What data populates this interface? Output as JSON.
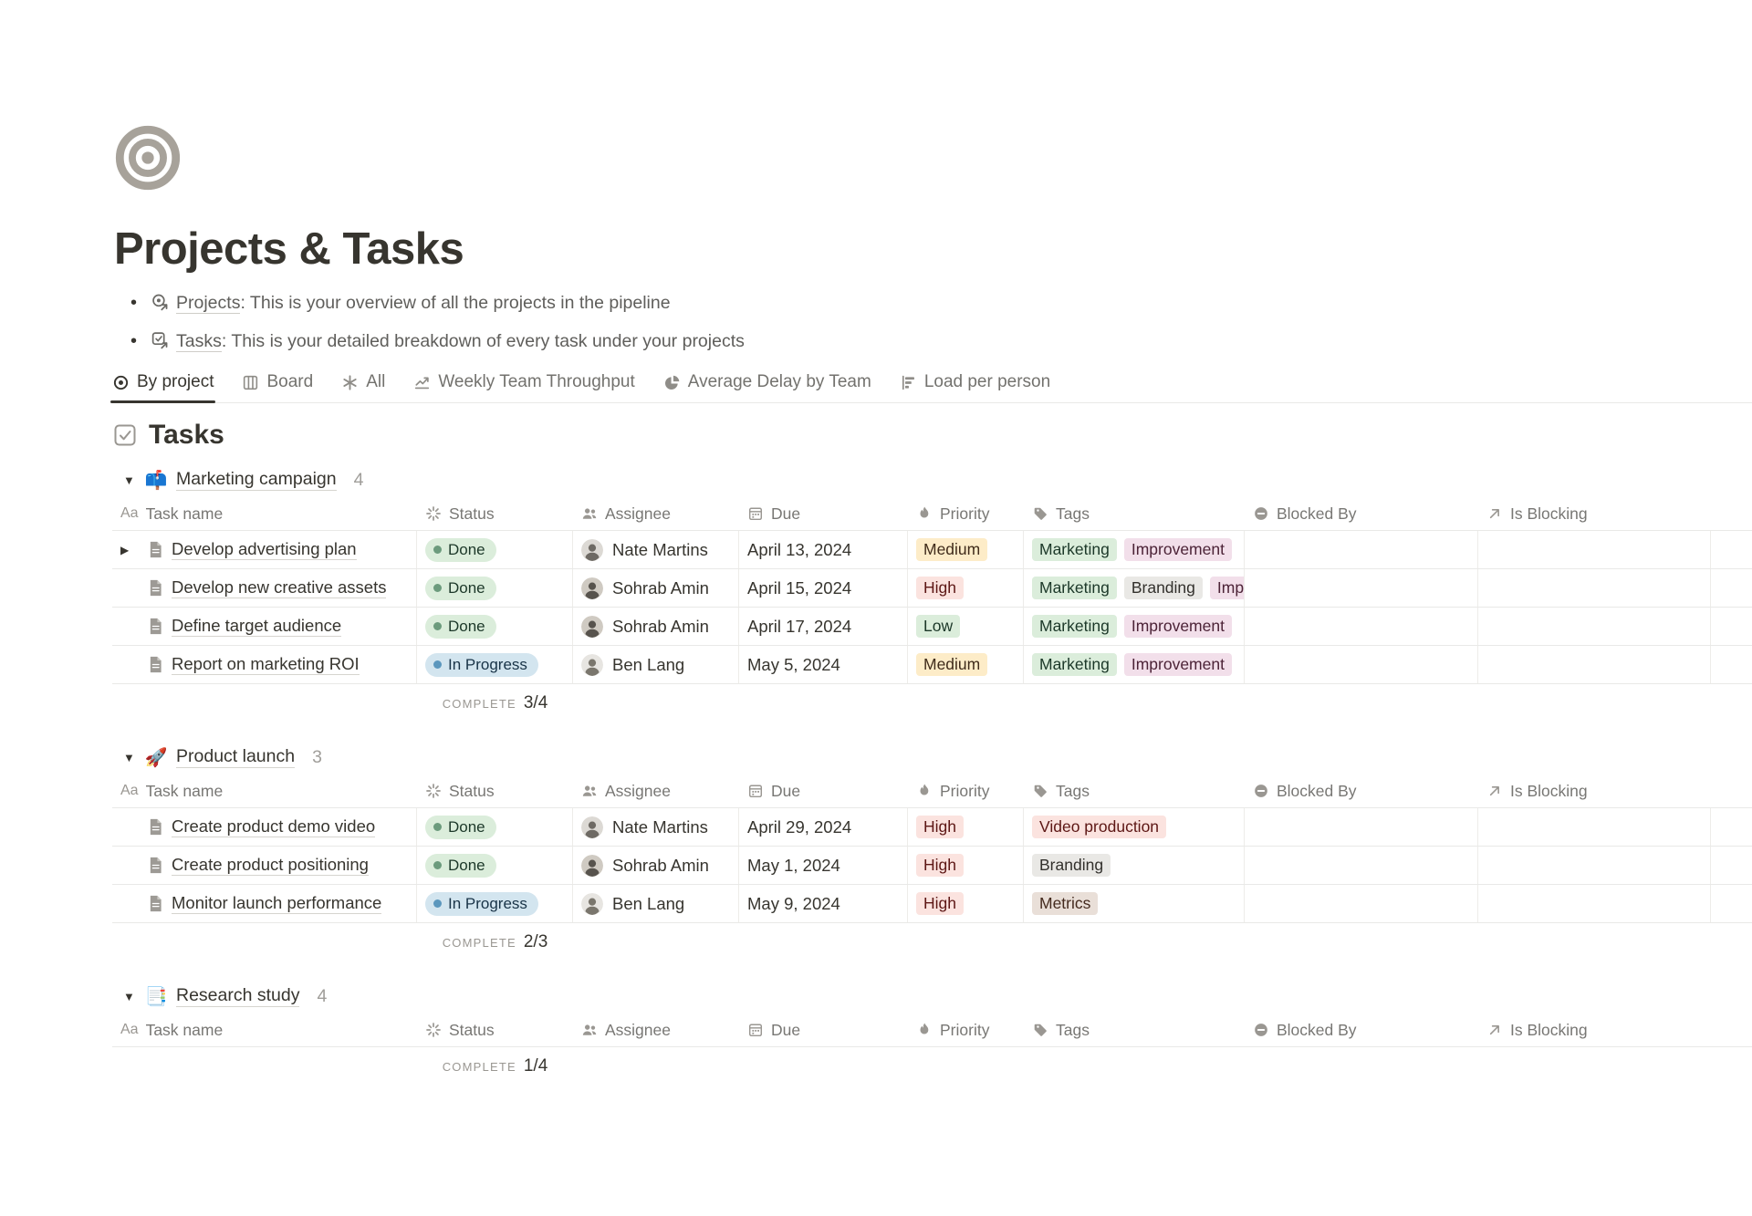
{
  "page": {
    "title": "Projects & Tasks",
    "icon": "target-bullseye-icon"
  },
  "bullets": [
    {
      "icon": "projects-database-icon",
      "link": "Projects",
      "text": ": This is your overview of all the projects in the pipeline"
    },
    {
      "icon": "tasks-database-icon",
      "link": "Tasks",
      "text": ": This is your detailed breakdown of every task under your projects"
    }
  ],
  "tabs": [
    {
      "label": "By project",
      "icon": "target-icon",
      "active": true
    },
    {
      "label": "Board",
      "icon": "board-icon",
      "active": false
    },
    {
      "label": "All",
      "icon": "asterisk-icon",
      "active": false
    },
    {
      "label": "Weekly Team Throughput",
      "icon": "line-chart-icon",
      "active": false
    },
    {
      "label": "Average Delay by Team",
      "icon": "pie-chart-icon",
      "active": false
    },
    {
      "label": "Load per person",
      "icon": "bar-chart-icon",
      "active": false
    }
  ],
  "section": {
    "title": "Tasks",
    "icon": "checkbox-icon"
  },
  "columns": [
    {
      "id": "name",
      "label": "Task name",
      "icon": "aa-icon"
    },
    {
      "id": "status",
      "label": "Status",
      "icon": "status-spinner-icon"
    },
    {
      "id": "assignee",
      "label": "Assignee",
      "icon": "people-icon"
    },
    {
      "id": "due",
      "label": "Due",
      "icon": "calendar-icon"
    },
    {
      "id": "priority",
      "label": "Priority",
      "icon": "flame-icon"
    },
    {
      "id": "tags",
      "label": "Tags",
      "icon": "tag-icon"
    },
    {
      "id": "blocked_by",
      "label": "Blocked By",
      "icon": "blocked-icon"
    },
    {
      "id": "is_blocking",
      "label": "Is Blocking",
      "icon": "arrow-up-right-icon"
    }
  ],
  "groups": [
    {
      "emoji": "📫",
      "name": "Marketing campaign",
      "count": "4",
      "rows": [
        {
          "toggle": true,
          "name": "Develop advertising plan",
          "status": "Done",
          "status_type": "done",
          "assignee": "Nate Martins",
          "due": "April 13, 2024",
          "priority": "Medium",
          "priority_color": "yellow",
          "tags": [
            {
              "label": "Marketing",
              "color": "green"
            },
            {
              "label": "Improvement",
              "color": "pink"
            }
          ]
        },
        {
          "toggle": false,
          "name": "Develop new creative assets",
          "status": "Done",
          "status_type": "done",
          "assignee": "Sohrab Amin",
          "due": "April 15, 2024",
          "priority": "High",
          "priority_color": "red",
          "tags": [
            {
              "label": "Marketing",
              "color": "green"
            },
            {
              "label": "Branding",
              "color": "gray"
            },
            {
              "label": "Improvement",
              "color": "pink"
            }
          ]
        },
        {
          "toggle": false,
          "name": "Define target audience",
          "status": "Done",
          "status_type": "done",
          "assignee": "Sohrab Amin",
          "due": "April 17, 2024",
          "priority": "Low",
          "priority_color": "green",
          "tags": [
            {
              "label": "Marketing",
              "color": "green"
            },
            {
              "label": "Improvement",
              "color": "pink"
            }
          ]
        },
        {
          "toggle": false,
          "name": "Report on marketing ROI",
          "status": "In Progress",
          "status_type": "inprogress",
          "assignee": "Ben Lang",
          "due": "May 5, 2024",
          "priority": "Medium",
          "priority_color": "yellow",
          "tags": [
            {
              "label": "Marketing",
              "color": "green"
            },
            {
              "label": "Improvement",
              "color": "pink"
            }
          ]
        }
      ],
      "summary": {
        "label": "COMPLETE",
        "value": "3/4"
      }
    },
    {
      "emoji": "🚀",
      "name": "Product launch",
      "count": "3",
      "rows": [
        {
          "toggle": false,
          "name": "Create product demo video",
          "status": "Done",
          "status_type": "done",
          "assignee": "Nate Martins",
          "due": "April 29, 2024",
          "priority": "High",
          "priority_color": "red",
          "tags": [
            {
              "label": "Video production",
              "color": "red"
            }
          ]
        },
        {
          "toggle": false,
          "name": "Create product positioning",
          "status": "Done",
          "status_type": "done",
          "assignee": "Sohrab Amin",
          "due": "May 1, 2024",
          "priority": "High",
          "priority_color": "red",
          "tags": [
            {
              "label": "Branding",
              "color": "gray"
            }
          ]
        },
        {
          "toggle": false,
          "name": "Monitor launch performance",
          "status": "In Progress",
          "status_type": "inprogress",
          "assignee": "Ben Lang",
          "due": "May 9, 2024",
          "priority": "High",
          "priority_color": "red",
          "tags": [
            {
              "label": "Metrics",
              "color": "brown"
            }
          ]
        }
      ],
      "summary": {
        "label": "COMPLETE",
        "value": "2/3"
      }
    },
    {
      "emoji": "📑",
      "name": "Research study",
      "count": "4",
      "rows": [],
      "summary": {
        "label": "COMPLETE",
        "value": "1/4"
      }
    }
  ],
  "colors": {
    "text_dark": "#37352F",
    "text_gray": "#787774",
    "divider": "#E9E9E7",
    "green_bg": "#DBEDDB",
    "green_text": "#1C3829",
    "green_dot": "#6C9B7D",
    "blue_bg": "#D3E5EF",
    "blue_text": "#183347",
    "blue_dot": "#5B97BD",
    "yellow_bg": "#FDECC8",
    "yellow_text": "#402C1B",
    "red_bg": "#FBE3DF",
    "red_text": "#5D1715",
    "pink_bg": "#F2DFEA",
    "pink_text": "#4C2337",
    "gray_bg": "#E9E8E5",
    "gray_text": "#32302C",
    "brown_bg": "#E9DFD8",
    "brown_text": "#442A1E"
  }
}
